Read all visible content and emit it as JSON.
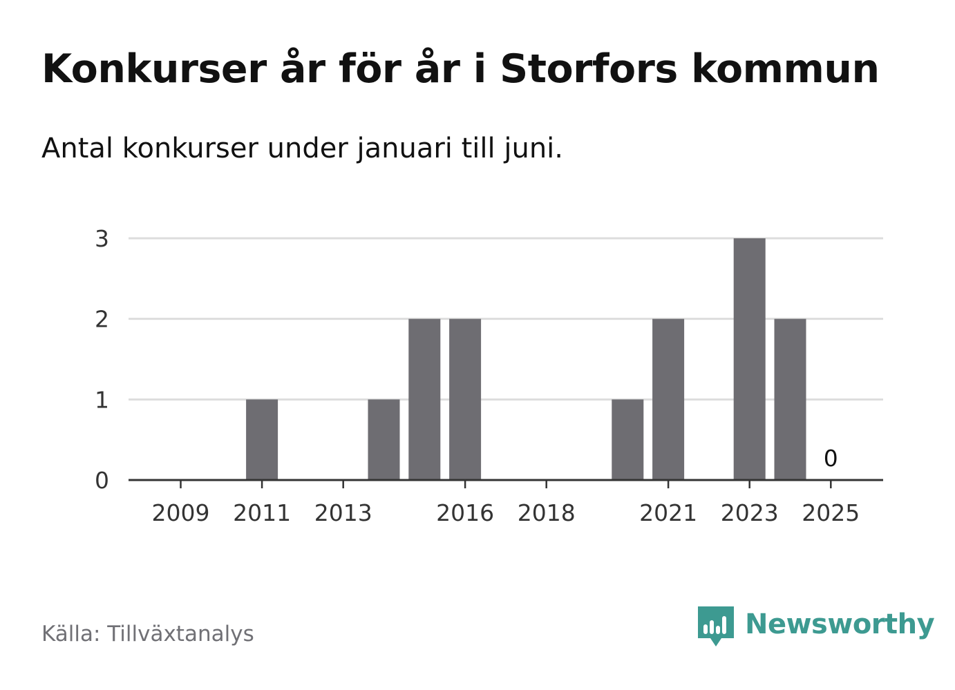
{
  "header": {
    "title": "Konkurser år för år i Storfors kommun",
    "subtitle": "Antal konkurser under januari till juni."
  },
  "footer": {
    "source": "Källa: Tillväxtanalys",
    "brand": "Newsworthy",
    "brand_icon": "bar-chart-speech-bubble-icon"
  },
  "colors": {
    "bar": "#6e6d72",
    "grid": "#dddddd",
    "axis": "#333333",
    "brand": "#3d9a91"
  },
  "chart_data": {
    "type": "bar",
    "title": "Konkurser år för år i Storfors kommun",
    "subtitle": "Antal konkurser under januari till juni.",
    "categories": [
      "2009",
      "2010",
      "2011",
      "2012",
      "2013",
      "2014",
      "2015",
      "2016",
      "2017",
      "2018",
      "2019",
      "2020",
      "2021",
      "2022",
      "2023",
      "2024",
      "2025"
    ],
    "values": [
      0,
      0,
      1,
      0,
      0,
      1,
      2,
      2,
      0,
      0,
      0,
      1,
      2,
      0,
      3,
      2,
      0
    ],
    "x_tick_labels": [
      "2009",
      "2011",
      "2013",
      "2016",
      "2018",
      "2021",
      "2023",
      "2025"
    ],
    "y_ticks": [
      0,
      1,
      2,
      3
    ],
    "ylim": [
      0,
      3
    ],
    "xlabel": "",
    "ylabel": "",
    "grid": true,
    "legend": "none",
    "value_labels": [
      {
        "category": "2025",
        "text": "0"
      }
    ]
  }
}
